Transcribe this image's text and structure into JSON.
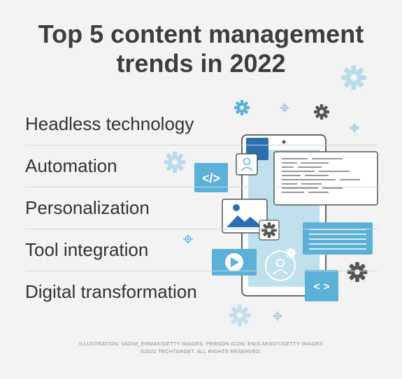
{
  "title": {
    "line1": "Top 5 content management",
    "line2": "trends in 2022"
  },
  "trends": [
    {
      "label": "Headless technology"
    },
    {
      "label": "Automation"
    },
    {
      "label": "Personalization"
    },
    {
      "label": "Tool integration"
    },
    {
      "label": "Digital transformation"
    }
  ],
  "credits": {
    "line1": "ILLUSTRATION: VADIM_ERMAK/GETTY IMAGES. PERSON ICON: ENIS AKSOY/GETTY IMAGES",
    "line2": "©2022 TECHTARGET. ALL RIGHTS RESERVED."
  },
  "colors": {
    "light_blue": "#a9d3e3",
    "mid_blue": "#5bb1d8",
    "dark_blue": "#2773b5",
    "gear_gray": "#5a5a5a",
    "text": "#333333"
  },
  "icons": {
    "code_left": "</>",
    "code_right": "< >"
  }
}
